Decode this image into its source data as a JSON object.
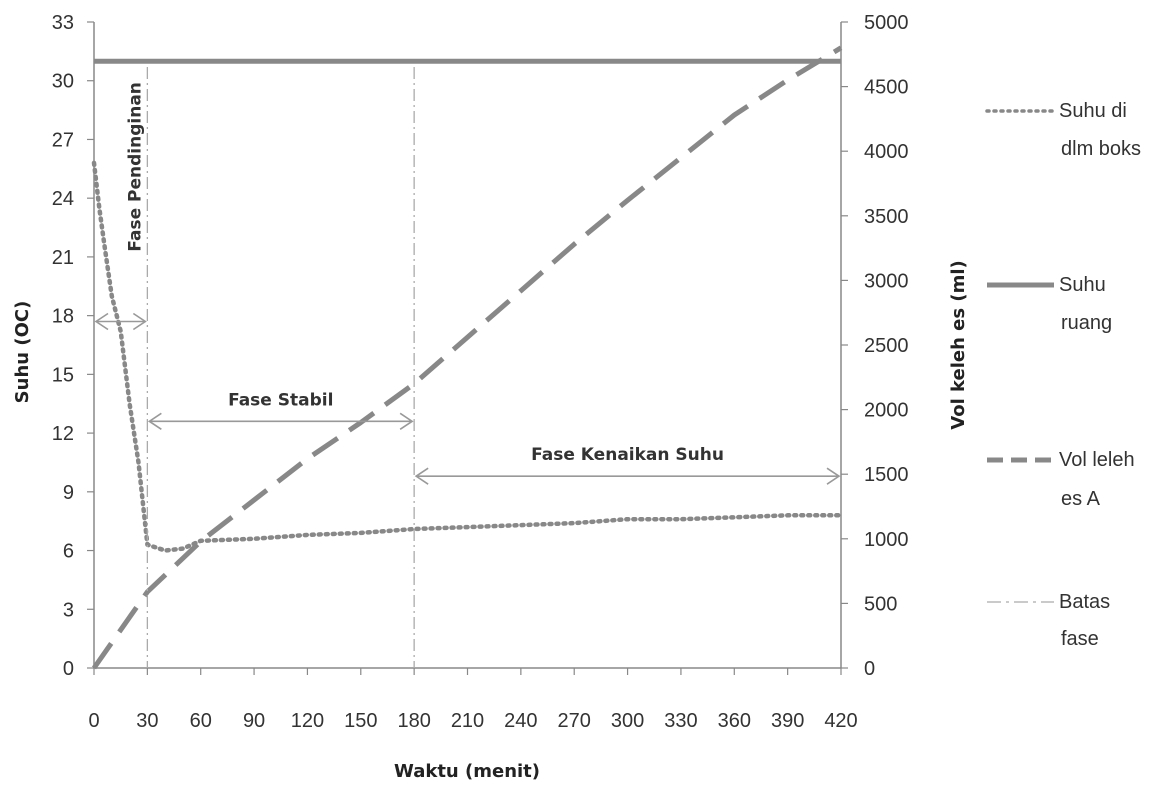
{
  "chart_data": {
    "type": "line",
    "xlabel": "Waktu (menit)",
    "ylabel": "Suhu (OC)",
    "y2label": "Vol keleh es (ml)",
    "xlim": [
      0,
      420
    ],
    "ylim": [
      0,
      33
    ],
    "y2lim": [
      0,
      5000
    ],
    "xticks": [
      "0",
      "30",
      "60",
      "90",
      "120",
      "150",
      "180",
      "210",
      "240",
      "270",
      "300",
      "330",
      "360",
      "390",
      "420"
    ],
    "yticks": [
      "0",
      "3",
      "6",
      "9",
      "12",
      "15",
      "18",
      "21",
      "24",
      "27",
      "30",
      "33"
    ],
    "y2ticks": [
      "0",
      "500",
      "1000",
      "1500",
      "2000",
      "2500",
      "3000",
      "3500",
      "4000",
      "4500",
      "5000"
    ],
    "grid": false,
    "legend_position": "right",
    "series": [
      {
        "name_lines": [
          "Suhu di",
          "dlm boks"
        ],
        "axis": "left",
        "style": "dotted",
        "color": "#888888",
        "x": [
          0,
          3,
          6,
          10,
          15,
          20,
          25,
          30,
          40,
          50,
          60,
          90,
          120,
          150,
          180,
          210,
          240,
          270,
          300,
          330,
          360,
          390,
          420
        ],
        "y": [
          25.8,
          23.5,
          21.5,
          19.0,
          17.2,
          13.5,
          10.5,
          6.3,
          6.0,
          6.1,
          6.5,
          6.6,
          6.8,
          6.9,
          7.1,
          7.2,
          7.3,
          7.4,
          7.6,
          7.6,
          7.7,
          7.8,
          7.8
        ]
      },
      {
        "name_lines": [
          "Suhu",
          "ruang"
        ],
        "axis": "left",
        "style": "solid",
        "color": "#888888",
        "x": [
          0,
          420
        ],
        "y": [
          31,
          31
        ]
      },
      {
        "name_lines": [
          "Vol leleh",
          "es A"
        ],
        "axis": "right",
        "style": "dashed",
        "color": "#888888",
        "x": [
          0,
          30,
          60,
          90,
          120,
          150,
          180,
          210,
          240,
          270,
          300,
          330,
          360,
          390,
          420
        ],
        "y": [
          0,
          590,
          980,
          1300,
          1620,
          1900,
          2200,
          2560,
          2920,
          3280,
          3620,
          3950,
          4280,
          4550,
          4800
        ]
      },
      {
        "name_lines": [
          "Batas",
          "fase"
        ],
        "axis": "left",
        "style": "dashdot",
        "color": "#aaaaaa",
        "x_lines": [
          30,
          180
        ]
      }
    ],
    "annotations": [
      {
        "text": "Fase Pendinginan",
        "x_from": 0,
        "x_to": 30,
        "y": 17.7,
        "label_orientation": "vertical"
      },
      {
        "text": "Fase Stabil",
        "x_from": 30,
        "x_to": 180,
        "y": 12.6
      },
      {
        "text": "Fase Kenaikan Suhu",
        "x_from": 180,
        "x_to": 420,
        "y": 9.8
      }
    ]
  }
}
